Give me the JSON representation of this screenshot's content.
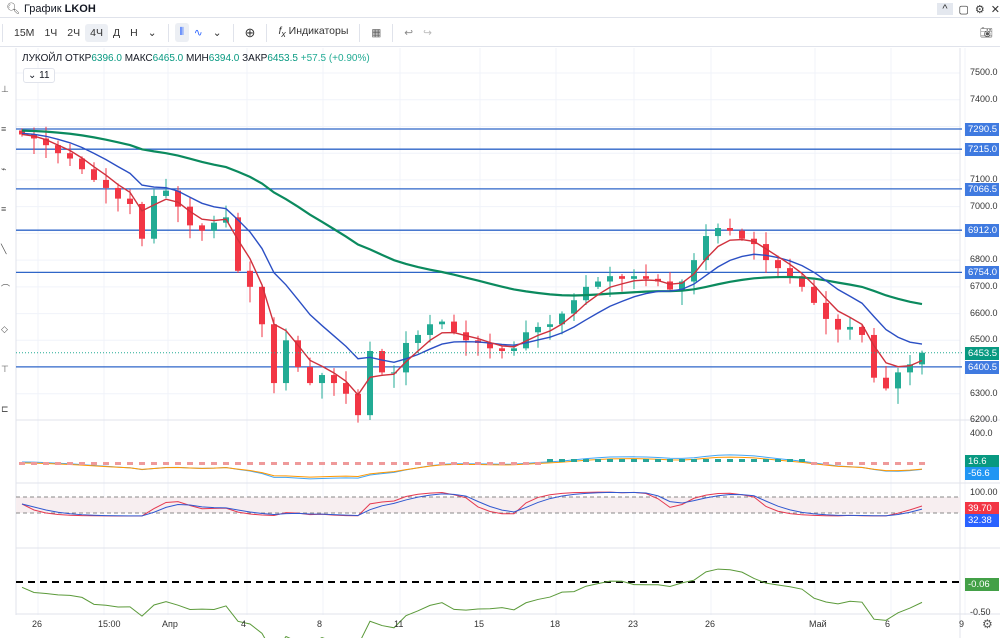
{
  "window": {
    "title_prefix": "График",
    "symbol": "LKOH",
    "controls": [
      "^",
      "▢",
      "⚙",
      "✕"
    ]
  },
  "toolbar": {
    "intervals": [
      "15М",
      "1Ч",
      "2Ч",
      "4Ч",
      "Д",
      "Н"
    ],
    "selected": "4Ч",
    "indicators_label": "Индикаторы"
  },
  "legend": {
    "name": "ЛУКОЙЛ",
    "open_label": "ОТКР",
    "open": "6396.0",
    "high_label": "МАКС",
    "high": "6465.0",
    "low_label": "МИН",
    "low": "6394.0",
    "close_label": "ЗАКР",
    "close": "6453.5",
    "change": "+57.5 (+0.90%)",
    "collapse_count": "11"
  },
  "colors": {
    "up": "#22ab94",
    "down": "#f23645",
    "level": "#2f66c8",
    "ema_fast": "#d0313d",
    "ema_mid": "#2b4fc4",
    "ema_slow": "#0b8a5e"
  },
  "price_axis": [
    "7500.0",
    "7400.0",
    "7100.0",
    "7000.0",
    "6800.0",
    "6700.0",
    "6600.0",
    "6500.0",
    "6300.0",
    "6200.0"
  ],
  "levels": [
    {
      "price": 7290.5,
      "label": "7290.5"
    },
    {
      "price": 7215.0,
      "label": "7215.0"
    },
    {
      "price": 7066.5,
      "label": "7066.5"
    },
    {
      "price": 6912.0,
      "label": "6912.0"
    },
    {
      "price": 6754.0,
      "label": "6754.0"
    },
    {
      "price": 6400.5,
      "label": "6400.5"
    }
  ],
  "last_price_tag": "6453.5",
  "panes": {
    "macd": {
      "axis": "400.0",
      "tag1": "16.6",
      "tag2": "-56.6"
    },
    "stoch": {
      "axis": "100.00",
      "tag1": "39.70",
      "tag2": "32.38"
    },
    "osc": {
      "tag": "-0.06",
      "axis": "-0.50"
    }
  },
  "x_axis": [
    "26",
    "15:00",
    "Апр",
    "4",
    "8",
    "11",
    "15",
    "18",
    "23",
    "26",
    "Май",
    "6",
    "9"
  ],
  "chart_data": {
    "type": "candlestick",
    "ylim": [
      6200,
      7500
    ],
    "closes": [
      7270,
      7255,
      7230,
      7200,
      7180,
      7140,
      7100,
      7070,
      7030,
      7010,
      6880,
      7040,
      7060,
      7000,
      6930,
      6910,
      6940,
      6960,
      6760,
      6700,
      6560,
      6340,
      6500,
      6400,
      6340,
      6370,
      6340,
      6300,
      6220,
      6460,
      6380,
      6380,
      6490,
      6520,
      6560,
      6570,
      6530,
      6500,
      6490,
      6470,
      6460,
      6470,
      6530,
      6550,
      6560,
      6600,
      6650,
      6700,
      6720,
      6740,
      6730,
      6740,
      6730,
      6720,
      6690,
      6720,
      6800,
      6890,
      6920,
      6910,
      6880,
      6860,
      6800,
      6770,
      6740,
      6700,
      6640,
      6580,
      6540,
      6550,
      6520,
      6360,
      6320,
      6380,
      6410,
      6453.5
    ]
  }
}
